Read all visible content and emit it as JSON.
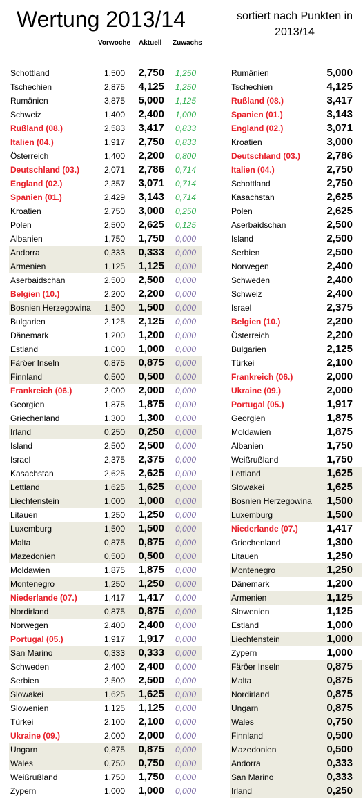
{
  "header": {
    "title": "Wertung 2013/14",
    "subtitle": "sortiert nach Punkten in 2013/14",
    "col_vorwoche": "Vorwoche",
    "col_aktuell": "Aktuell",
    "col_zuwachs": "Zuwachs"
  },
  "colors": {
    "highlight": "#e8202a",
    "gain_positive": "#2fae4f",
    "gain_zero": "#7e6ea6",
    "shade": "#ecebe0"
  },
  "left_rows": [
    {
      "country": "Schottland",
      "prev": "1,500",
      "cur": "2,750",
      "gain": "1,250",
      "hl": false,
      "shade": false
    },
    {
      "country": "Tschechien",
      "prev": "2,875",
      "cur": "4,125",
      "gain": "1,250",
      "hl": false,
      "shade": false
    },
    {
      "country": "Rumänien",
      "prev": "3,875",
      "cur": "5,000",
      "gain": "1,125",
      "hl": false,
      "shade": false
    },
    {
      "country": "Schweiz",
      "prev": "1,400",
      "cur": "2,400",
      "gain": "1,000",
      "hl": false,
      "shade": false
    },
    {
      "country": "Rußland (08.)",
      "prev": "2,583",
      "cur": "3,417",
      "gain": "0,833",
      "hl": true,
      "shade": false
    },
    {
      "country": "Italien (04.)",
      "prev": "1,917",
      "cur": "2,750",
      "gain": "0,833",
      "hl": true,
      "shade": false
    },
    {
      "country": "Österreich",
      "prev": "1,400",
      "cur": "2,200",
      "gain": "0,800",
      "hl": false,
      "shade": false
    },
    {
      "country": "Deutschland (03.)",
      "prev": "2,071",
      "cur": "2,786",
      "gain": "0,714",
      "hl": true,
      "shade": false
    },
    {
      "country": "England (02.)",
      "prev": "2,357",
      "cur": "3,071",
      "gain": "0,714",
      "hl": true,
      "shade": false
    },
    {
      "country": "Spanien (01.)",
      "prev": "2,429",
      "cur": "3,143",
      "gain": "0,714",
      "hl": true,
      "shade": false
    },
    {
      "country": "Kroatien",
      "prev": "2,750",
      "cur": "3,000",
      "gain": "0,250",
      "hl": false,
      "shade": false
    },
    {
      "country": "Polen",
      "prev": "2,500",
      "cur": "2,625",
      "gain": "0,125",
      "hl": false,
      "shade": false
    },
    {
      "country": "Albanien",
      "prev": "1,750",
      "cur": "1,750",
      "gain": "0,000",
      "hl": false,
      "shade": false
    },
    {
      "country": "Andorra",
      "prev": "0,333",
      "cur": "0,333",
      "gain": "0,000",
      "hl": false,
      "shade": true
    },
    {
      "country": "Armenien",
      "prev": "1,125",
      "cur": "1,125",
      "gain": "0,000",
      "hl": false,
      "shade": true
    },
    {
      "country": "Aserbaidschan",
      "prev": "2,500",
      "cur": "2,500",
      "gain": "0,000",
      "hl": false,
      "shade": false
    },
    {
      "country": "Belgien (10.)",
      "prev": "2,200",
      "cur": "2,200",
      "gain": "0,000",
      "hl": true,
      "shade": false
    },
    {
      "country": "Bosnien Herzegowina",
      "prev": "1,500",
      "cur": "1,500",
      "gain": "0,000",
      "hl": false,
      "shade": true
    },
    {
      "country": "Bulgarien",
      "prev": "2,125",
      "cur": "2,125",
      "gain": "0,000",
      "hl": false,
      "shade": false
    },
    {
      "country": "Dänemark",
      "prev": "1,200",
      "cur": "1,200",
      "gain": "0,000",
      "hl": false,
      "shade": false
    },
    {
      "country": "Estland",
      "prev": "1,000",
      "cur": "1,000",
      "gain": "0,000",
      "hl": false,
      "shade": false
    },
    {
      "country": "Färöer Inseln",
      "prev": "0,875",
      "cur": "0,875",
      "gain": "0,000",
      "hl": false,
      "shade": true
    },
    {
      "country": "Finnland",
      "prev": "0,500",
      "cur": "0,500",
      "gain": "0,000",
      "hl": false,
      "shade": true
    },
    {
      "country": "Frankreich (06.)",
      "prev": "2,000",
      "cur": "2,000",
      "gain": "0,000",
      "hl": true,
      "shade": false
    },
    {
      "country": "Georgien",
      "prev": "1,875",
      "cur": "1,875",
      "gain": "0,000",
      "hl": false,
      "shade": false
    },
    {
      "country": "Griechenland",
      "prev": "1,300",
      "cur": "1,300",
      "gain": "0,000",
      "hl": false,
      "shade": false
    },
    {
      "country": "Irland",
      "prev": "0,250",
      "cur": "0,250",
      "gain": "0,000",
      "hl": false,
      "shade": true
    },
    {
      "country": "Island",
      "prev": "2,500",
      "cur": "2,500",
      "gain": "0,000",
      "hl": false,
      "shade": false
    },
    {
      "country": "Israel",
      "prev": "2,375",
      "cur": "2,375",
      "gain": "0,000",
      "hl": false,
      "shade": false
    },
    {
      "country": "Kasachstan",
      "prev": "2,625",
      "cur": "2,625",
      "gain": "0,000",
      "hl": false,
      "shade": false
    },
    {
      "country": "Lettland",
      "prev": "1,625",
      "cur": "1,625",
      "gain": "0,000",
      "hl": false,
      "shade": true
    },
    {
      "country": "Liechtenstein",
      "prev": "1,000",
      "cur": "1,000",
      "gain": "0,000",
      "hl": false,
      "shade": true
    },
    {
      "country": "Litauen",
      "prev": "1,250",
      "cur": "1,250",
      "gain": "0,000",
      "hl": false,
      "shade": false
    },
    {
      "country": "Luxemburg",
      "prev": "1,500",
      "cur": "1,500",
      "gain": "0,000",
      "hl": false,
      "shade": true
    },
    {
      "country": "Malta",
      "prev": "0,875",
      "cur": "0,875",
      "gain": "0,000",
      "hl": false,
      "shade": true
    },
    {
      "country": "Mazedonien",
      "prev": "0,500",
      "cur": "0,500",
      "gain": "0,000",
      "hl": false,
      "shade": true
    },
    {
      "country": "Moldawien",
      "prev": "1,875",
      "cur": "1,875",
      "gain": "0,000",
      "hl": false,
      "shade": false
    },
    {
      "country": "Montenegro",
      "prev": "1,250",
      "cur": "1,250",
      "gain": "0,000",
      "hl": false,
      "shade": true
    },
    {
      "country": "Niederlande (07.)",
      "prev": "1,417",
      "cur": "1,417",
      "gain": "0,000",
      "hl": true,
      "shade": false
    },
    {
      "country": "Nordirland",
      "prev": "0,875",
      "cur": "0,875",
      "gain": "0,000",
      "hl": false,
      "shade": true
    },
    {
      "country": "Norwegen",
      "prev": "2,400",
      "cur": "2,400",
      "gain": "0,000",
      "hl": false,
      "shade": false
    },
    {
      "country": "Portugal (05.)",
      "prev": "1,917",
      "cur": "1,917",
      "gain": "0,000",
      "hl": true,
      "shade": false
    },
    {
      "country": "San Marino",
      "prev": "0,333",
      "cur": "0,333",
      "gain": "0,000",
      "hl": false,
      "shade": true
    },
    {
      "country": "Schweden",
      "prev": "2,400",
      "cur": "2,400",
      "gain": "0,000",
      "hl": false,
      "shade": false
    },
    {
      "country": "Serbien",
      "prev": "2,500",
      "cur": "2,500",
      "gain": "0,000",
      "hl": false,
      "shade": false
    },
    {
      "country": "Slowakei",
      "prev": "1,625",
      "cur": "1,625",
      "gain": "0,000",
      "hl": false,
      "shade": true
    },
    {
      "country": "Slowenien",
      "prev": "1,125",
      "cur": "1,125",
      "gain": "0,000",
      "hl": false,
      "shade": false
    },
    {
      "country": "Türkei",
      "prev": "2,100",
      "cur": "2,100",
      "gain": "0,000",
      "hl": false,
      "shade": false
    },
    {
      "country": "Ukraine (09.)",
      "prev": "2,000",
      "cur": "2,000",
      "gain": "0,000",
      "hl": true,
      "shade": false
    },
    {
      "country": "Ungarn",
      "prev": "0,875",
      "cur": "0,875",
      "gain": "0,000",
      "hl": false,
      "shade": true
    },
    {
      "country": "Wales",
      "prev": "0,750",
      "cur": "0,750",
      "gain": "0,000",
      "hl": false,
      "shade": true
    },
    {
      "country": "Weißrußland",
      "prev": "1,750",
      "cur": "1,750",
      "gain": "0,000",
      "hl": false,
      "shade": false
    },
    {
      "country": "Zypern",
      "prev": "1,000",
      "cur": "1,000",
      "gain": "0,000",
      "hl": false,
      "shade": false
    }
  ],
  "right_rows": [
    {
      "country": "Rumänien",
      "cur": "5,000",
      "hl": false,
      "shade": false
    },
    {
      "country": "Tschechien",
      "cur": "4,125",
      "hl": false,
      "shade": false
    },
    {
      "country": "Rußland (08.)",
      "cur": "3,417",
      "hl": true,
      "shade": false
    },
    {
      "country": "Spanien (01.)",
      "cur": "3,143",
      "hl": true,
      "shade": false
    },
    {
      "country": "England (02.)",
      "cur": "3,071",
      "hl": true,
      "shade": false
    },
    {
      "country": "Kroatien",
      "cur": "3,000",
      "hl": false,
      "shade": false
    },
    {
      "country": "Deutschland (03.)",
      "cur": "2,786",
      "hl": true,
      "shade": false
    },
    {
      "country": "Italien (04.)",
      "cur": "2,750",
      "hl": true,
      "shade": false
    },
    {
      "country": "Schottland",
      "cur": "2,750",
      "hl": false,
      "shade": false
    },
    {
      "country": "Kasachstan",
      "cur": "2,625",
      "hl": false,
      "shade": false
    },
    {
      "country": "Polen",
      "cur": "2,625",
      "hl": false,
      "shade": false
    },
    {
      "country": "Aserbaidschan",
      "cur": "2,500",
      "hl": false,
      "shade": false
    },
    {
      "country": "Island",
      "cur": "2,500",
      "hl": false,
      "shade": false
    },
    {
      "country": "Serbien",
      "cur": "2,500",
      "hl": false,
      "shade": false
    },
    {
      "country": "Norwegen",
      "cur": "2,400",
      "hl": false,
      "shade": false
    },
    {
      "country": "Schweden",
      "cur": "2,400",
      "hl": false,
      "shade": false
    },
    {
      "country": "Schweiz",
      "cur": "2,400",
      "hl": false,
      "shade": false
    },
    {
      "country": "Israel",
      "cur": "2,375",
      "hl": false,
      "shade": false
    },
    {
      "country": "Belgien (10.)",
      "cur": "2,200",
      "hl": true,
      "shade": false
    },
    {
      "country": "Österreich",
      "cur": "2,200",
      "hl": false,
      "shade": false
    },
    {
      "country": "Bulgarien",
      "cur": "2,125",
      "hl": false,
      "shade": false
    },
    {
      "country": "Türkei",
      "cur": "2,100",
      "hl": false,
      "shade": false
    },
    {
      "country": "Frankreich (06.)",
      "cur": "2,000",
      "hl": true,
      "shade": false
    },
    {
      "country": "Ukraine (09.)",
      "cur": "2,000",
      "hl": true,
      "shade": false
    },
    {
      "country": "Portugal (05.)",
      "cur": "1,917",
      "hl": true,
      "shade": false
    },
    {
      "country": "Georgien",
      "cur": "1,875",
      "hl": false,
      "shade": false
    },
    {
      "country": "Moldawien",
      "cur": "1,875",
      "hl": false,
      "shade": false
    },
    {
      "country": "Albanien",
      "cur": "1,750",
      "hl": false,
      "shade": false
    },
    {
      "country": "Weißrußland",
      "cur": "1,750",
      "hl": false,
      "shade": false
    },
    {
      "country": "Lettland",
      "cur": "1,625",
      "hl": false,
      "shade": true
    },
    {
      "country": "Slowakei",
      "cur": "1,625",
      "hl": false,
      "shade": true
    },
    {
      "country": "Bosnien Herzegowina",
      "cur": "1,500",
      "hl": false,
      "shade": true
    },
    {
      "country": "Luxemburg",
      "cur": "1,500",
      "hl": false,
      "shade": true
    },
    {
      "country": "Niederlande (07.)",
      "cur": "1,417",
      "hl": true,
      "shade": false
    },
    {
      "country": "Griechenland",
      "cur": "1,300",
      "hl": false,
      "shade": false
    },
    {
      "country": "Litauen",
      "cur": "1,250",
      "hl": false,
      "shade": false
    },
    {
      "country": "Montenegro",
      "cur": "1,250",
      "hl": false,
      "shade": true
    },
    {
      "country": "Dänemark",
      "cur": "1,200",
      "hl": false,
      "shade": false
    },
    {
      "country": "Armenien",
      "cur": "1,125",
      "hl": false,
      "shade": true
    },
    {
      "country": "Slowenien",
      "cur": "1,125",
      "hl": false,
      "shade": false
    },
    {
      "country": "Estland",
      "cur": "1,000",
      "hl": false,
      "shade": false
    },
    {
      "country": "Liechtenstein",
      "cur": "1,000",
      "hl": false,
      "shade": true
    },
    {
      "country": "Zypern",
      "cur": "1,000",
      "hl": false,
      "shade": false
    },
    {
      "country": "Färöer Inseln",
      "cur": "0,875",
      "hl": false,
      "shade": true
    },
    {
      "country": "Malta",
      "cur": "0,875",
      "hl": false,
      "shade": true
    },
    {
      "country": "Nordirland",
      "cur": "0,875",
      "hl": false,
      "shade": true
    },
    {
      "country": "Ungarn",
      "cur": "0,875",
      "hl": false,
      "shade": true
    },
    {
      "country": "Wales",
      "cur": "0,750",
      "hl": false,
      "shade": true
    },
    {
      "country": "Finnland",
      "cur": "0,500",
      "hl": false,
      "shade": true
    },
    {
      "country": "Mazedonien",
      "cur": "0,500",
      "hl": false,
      "shade": true
    },
    {
      "country": "Andorra",
      "cur": "0,333",
      "hl": false,
      "shade": true
    },
    {
      "country": "San Marino",
      "cur": "0,333",
      "hl": false,
      "shade": true
    },
    {
      "country": "Irland",
      "cur": "0,250",
      "hl": false,
      "shade": true
    }
  ]
}
